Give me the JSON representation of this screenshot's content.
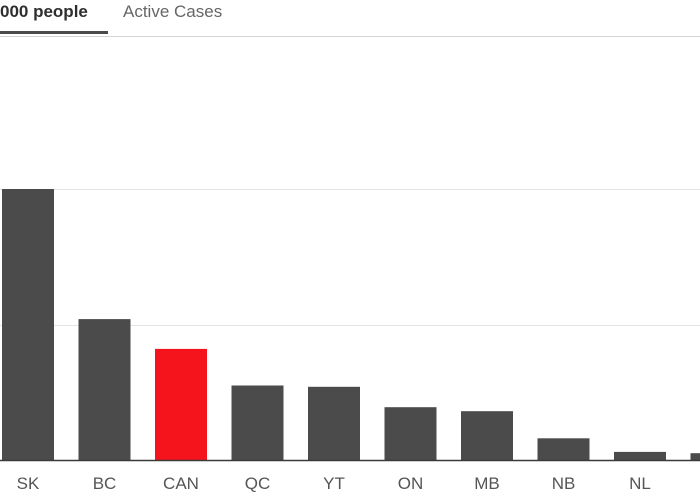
{
  "tabs": [
    {
      "label": "000 people",
      "active": true
    },
    {
      "label": "Active Cases",
      "active": false
    }
  ],
  "colors": {
    "bar": "#4b4b4b",
    "highlight": "#f5141c",
    "gridline": "#e3e3e3",
    "baseline": "#3a3a3a",
    "tick_label": "#555555"
  },
  "chart_data": {
    "type": "bar",
    "categories": [
      "SK",
      "BC",
      "CAN",
      "QC",
      "YT",
      "ON",
      "MB",
      "NB",
      "NL",
      ""
    ],
    "values": [
      2.0,
      1.04,
      0.82,
      0.55,
      0.54,
      0.39,
      0.36,
      0.16,
      0.06,
      0.05
    ],
    "highlight": "CAN",
    "ylim": [
      0,
      2.0
    ],
    "grid": true,
    "title": "",
    "xlabel": "",
    "ylabel": ""
  }
}
